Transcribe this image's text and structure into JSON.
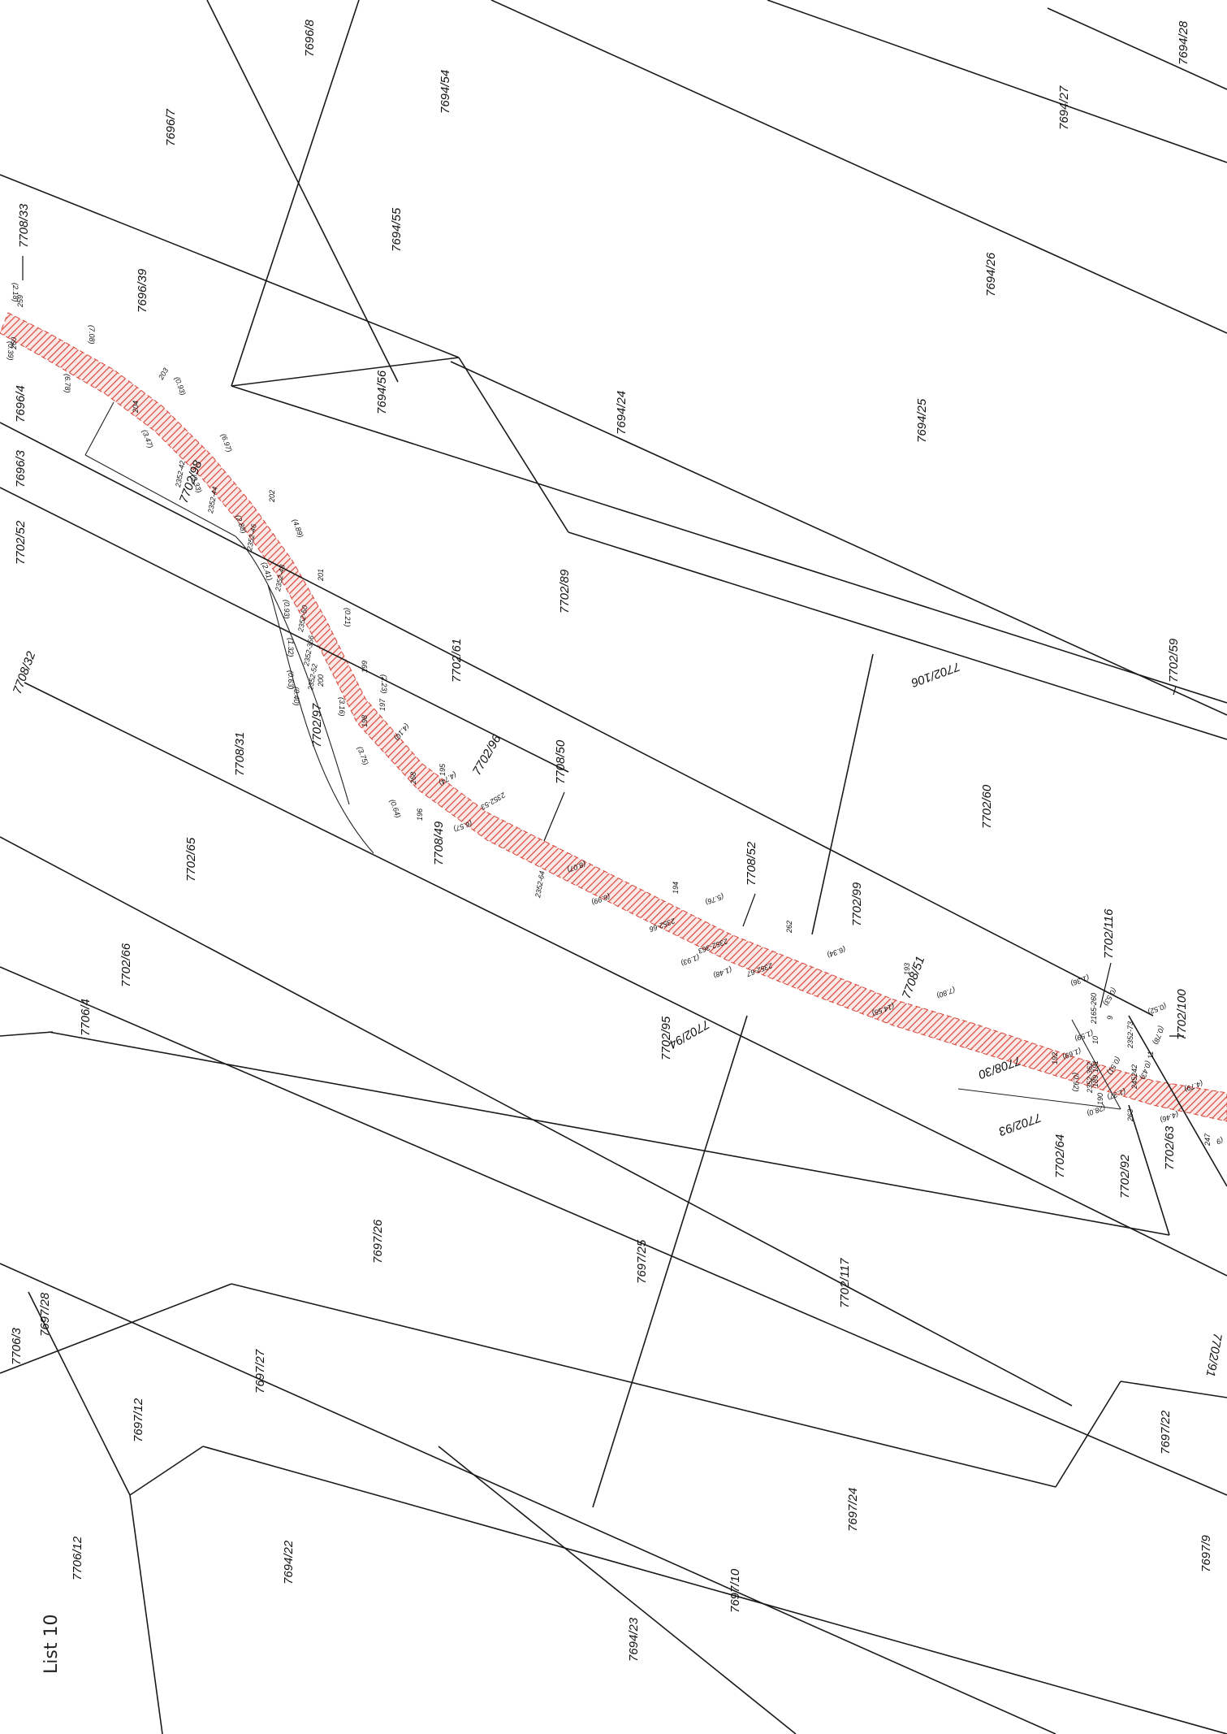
{
  "sheet_label": "List 10",
  "colors": {
    "lines": "#1a1a1a",
    "easement_hatch": "#d9463b",
    "background": "#ffffff"
  },
  "parcels": [
    {
      "id": "7696/8"
    },
    {
      "id": "7696/7"
    },
    {
      "id": "7694/54"
    },
    {
      "id": "7694/28"
    },
    {
      "id": "7694/27"
    },
    {
      "id": "7708/33"
    },
    {
      "id": "7696/39"
    },
    {
      "id": "7694/55"
    },
    {
      "id": "7694/26"
    },
    {
      "id": "7694/56"
    },
    {
      "id": "7694/24"
    },
    {
      "id": "7694/25"
    },
    {
      "id": "7696/4"
    },
    {
      "id": "7696/3"
    },
    {
      "id": "7702/98"
    },
    {
      "id": "7702/52"
    },
    {
      "id": "7702/89"
    },
    {
      "id": "7702/61"
    },
    {
      "id": "7702/106"
    },
    {
      "id": "7702/59"
    },
    {
      "id": "7708/32"
    },
    {
      "id": "7702/97"
    },
    {
      "id": "7702/96"
    },
    {
      "id": "7708/31"
    },
    {
      "id": "7708/50"
    },
    {
      "id": "7702/60"
    },
    {
      "id": "7708/49"
    },
    {
      "id": "7702/65"
    },
    {
      "id": "7708/52"
    },
    {
      "id": "7702/99"
    },
    {
      "id": "7702/116"
    },
    {
      "id": "7708/51"
    },
    {
      "id": "7702/66"
    },
    {
      "id": "7702/100"
    },
    {
      "id": "7706/4"
    },
    {
      "id": "7702/95"
    },
    {
      "id": "7702/94"
    },
    {
      "id": "7708/30"
    },
    {
      "id": "7702/93"
    },
    {
      "id": "7702/63"
    },
    {
      "id": "7702/92"
    },
    {
      "id": "7697/26"
    },
    {
      "id": "7697/25"
    },
    {
      "id": "7702/117"
    },
    {
      "id": "7702/64"
    },
    {
      "id": "7702/91"
    },
    {
      "id": "7706/3"
    },
    {
      "id": "7697/28"
    },
    {
      "id": "7697/27"
    },
    {
      "id": "7697/12"
    },
    {
      "id": "7697/22"
    },
    {
      "id": "7697/24"
    },
    {
      "id": "7706/12"
    },
    {
      "id": "7694/22"
    },
    {
      "id": "7697/10"
    },
    {
      "id": "7694/23"
    },
    {
      "id": "7697/9"
    }
  ],
  "easement_labels": [
    {
      "text": "2352-42"
    },
    {
      "text": "2352-44"
    },
    {
      "text": "2352-46"
    },
    {
      "text": "2352-48"
    },
    {
      "text": "2352-50"
    },
    {
      "text": "2352-356"
    },
    {
      "text": "2352-52"
    },
    {
      "text": "2352-53"
    },
    {
      "text": "2352-64"
    },
    {
      "text": "2352-66"
    },
    {
      "text": "2352-363"
    },
    {
      "text": "2352-67"
    },
    {
      "text": "2352-73"
    },
    {
      "text": "2352-362"
    },
    {
      "text": "2165-260"
    }
  ],
  "point_numbers": [
    {
      "text": "259"
    },
    {
      "text": "260"
    },
    {
      "text": "203"
    },
    {
      "text": "204"
    },
    {
      "text": "202"
    },
    {
      "text": "201"
    },
    {
      "text": "199"
    },
    {
      "text": "200"
    },
    {
      "text": "197"
    },
    {
      "text": "198"
    },
    {
      "text": "195"
    },
    {
      "text": "196"
    },
    {
      "text": "268"
    },
    {
      "text": "194"
    },
    {
      "text": "262"
    },
    {
      "text": "193"
    },
    {
      "text": "9"
    },
    {
      "text": "10"
    },
    {
      "text": "11"
    },
    {
      "text": "191"
    },
    {
      "text": "192"
    },
    {
      "text": "189"
    },
    {
      "text": "190"
    },
    {
      "text": "242"
    },
    {
      "text": "245"
    },
    {
      "text": "263"
    },
    {
      "text": "247"
    }
  ],
  "distances": [
    {
      "text": "(2.18)"
    },
    {
      "text": "(0.39)"
    },
    {
      "text": "(7.08)"
    },
    {
      "text": "(6.78)"
    },
    {
      "text": "(0.93)"
    },
    {
      "text": "(3.47)"
    },
    {
      "text": "(6.97)"
    },
    {
      "text": "(3.33)"
    },
    {
      "text": "(2.88)"
    },
    {
      "text": "(4.89)"
    },
    {
      "text": "(2.41)"
    },
    {
      "text": "(0.93)"
    },
    {
      "text": "(0.21)"
    },
    {
      "text": "(1.32)"
    },
    {
      "text": "(0.63)"
    },
    {
      "text": "(0.40)"
    },
    {
      "text": "(3.16)"
    },
    {
      "text": "(2.23)"
    },
    {
      "text": "(3.75)"
    },
    {
      "text": "(4.10)"
    },
    {
      "text": "(4.74)"
    },
    {
      "text": "(0.64)"
    },
    {
      "text": "(6.57)"
    },
    {
      "text": "(8.07)"
    },
    {
      "text": "(6.99)"
    },
    {
      "text": "(5.76)"
    },
    {
      "text": "(1.93)"
    },
    {
      "text": "(1.48)"
    },
    {
      "text": "(6.34)"
    },
    {
      "text": "(7.80)"
    },
    {
      "text": "(14.55)"
    },
    {
      "text": "(1.36)"
    },
    {
      "text": "(0.53)"
    },
    {
      "text": "(0.52)"
    },
    {
      "text": "(1.59)"
    },
    {
      "text": "(1.69)"
    },
    {
      "text": "(0.51)"
    },
    {
      "text": "(0.78)"
    },
    {
      "text": "(0.43)"
    },
    {
      "text": "(1.37)"
    },
    {
      "text": "(4.79)"
    },
    {
      "text": "(0.92)"
    },
    {
      "text": "(28.0)"
    },
    {
      "text": "(4.46)"
    },
    {
      "text": "(9"
    }
  ]
}
